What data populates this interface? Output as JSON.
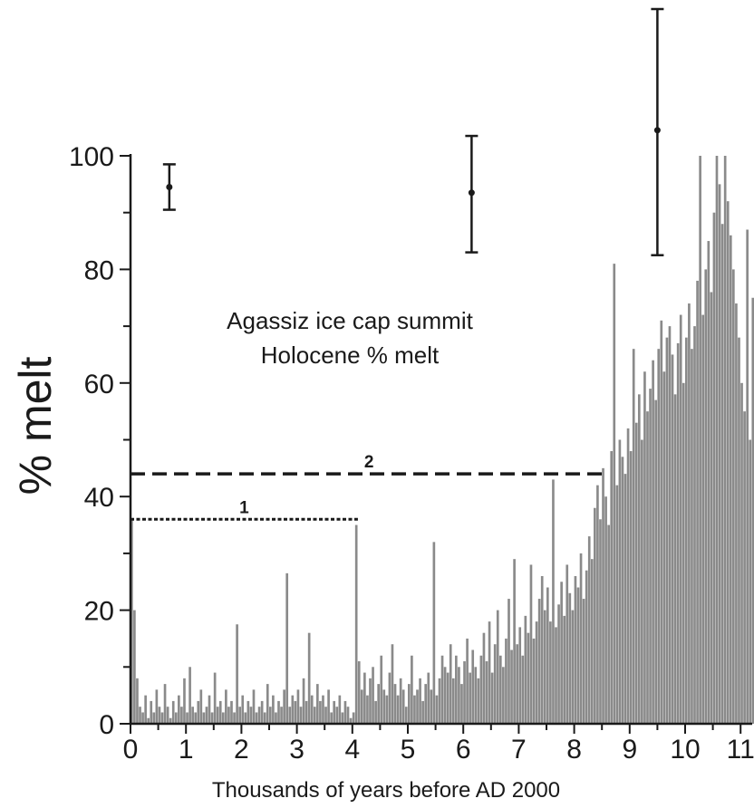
{
  "chart_data": {
    "type": "bar",
    "title_lines": [
      "Agassiz ice cap summit",
      "Holocene % melt"
    ],
    "xlabel": "Thousands of years before AD 2000",
    "ylabel": "% melt",
    "xlim": [
      0,
      11.25
    ],
    "ylim": [
      0,
      100
    ],
    "x_ticks": [
      0,
      1,
      2,
      3,
      4,
      5,
      6,
      7,
      8,
      9,
      10,
      11
    ],
    "y_ticks": [
      0,
      20,
      40,
      60,
      80,
      100
    ],
    "y_minor_ticks": [
      10,
      30,
      50,
      70,
      90
    ],
    "bar_color": "#8a8a8a",
    "reference_lines": [
      {
        "label": "1",
        "y": 36,
        "x_start": 0,
        "x_end": 4.1,
        "style": "dotted"
      },
      {
        "label": "2",
        "y": 44,
        "x_start": 0,
        "x_end": 8.6,
        "style": "dashed"
      }
    ],
    "error_bars": [
      {
        "x": 0.7,
        "y": 94.5,
        "low": 90.5,
        "high": 98.5
      },
      {
        "x": 6.15,
        "y": 93.5,
        "low": 83,
        "high": 103.5
      },
      {
        "x": 9.5,
        "y": 104.5,
        "low": 82.5,
        "high": 127
      }
    ],
    "x": [
      0.0,
      0.05,
      0.1,
      0.15,
      0.2,
      0.25,
      0.3,
      0.35,
      0.4,
      0.45,
      0.5,
      0.55,
      0.6,
      0.65,
      0.7,
      0.75,
      0.8,
      0.85,
      0.9,
      0.95,
      1.0,
      1.05,
      1.1,
      1.15,
      1.2,
      1.25,
      1.3,
      1.35,
      1.4,
      1.45,
      1.5,
      1.55,
      1.6,
      1.65,
      1.7,
      1.75,
      1.8,
      1.85,
      1.9,
      1.95,
      2.0,
      2.05,
      2.1,
      2.15,
      2.2,
      2.25,
      2.3,
      2.35,
      2.4,
      2.45,
      2.5,
      2.55,
      2.6,
      2.65,
      2.7,
      2.75,
      2.8,
      2.85,
      2.9,
      2.95,
      3.0,
      3.05,
      3.1,
      3.15,
      3.2,
      3.25,
      3.3,
      3.35,
      3.4,
      3.45,
      3.5,
      3.55,
      3.6,
      3.65,
      3.7,
      3.75,
      3.8,
      3.85,
      3.9,
      3.95,
      4.0,
      4.05,
      4.1,
      4.15,
      4.2,
      4.25,
      4.3,
      4.35,
      4.4,
      4.45,
      4.5,
      4.55,
      4.6,
      4.65,
      4.7,
      4.75,
      4.8,
      4.85,
      4.9,
      4.95,
      5.0,
      5.05,
      5.1,
      5.15,
      5.2,
      5.25,
      5.3,
      5.35,
      5.4,
      5.45,
      5.5,
      5.55,
      5.6,
      5.65,
      5.7,
      5.75,
      5.8,
      5.85,
      5.9,
      5.95,
      6.0,
      6.05,
      6.1,
      6.15,
      6.2,
      6.25,
      6.3,
      6.35,
      6.4,
      6.45,
      6.5,
      6.55,
      6.6,
      6.65,
      6.7,
      6.75,
      6.8,
      6.85,
      6.9,
      6.95,
      7.0,
      7.05,
      7.1,
      7.15,
      7.2,
      7.25,
      7.3,
      7.35,
      7.4,
      7.45,
      7.5,
      7.55,
      7.6,
      7.65,
      7.7,
      7.75,
      7.8,
      7.85,
      7.9,
      7.95,
      8.0,
      8.05,
      8.1,
      8.15,
      8.2,
      8.25,
      8.3,
      8.35,
      8.4,
      8.45,
      8.5,
      8.55,
      8.6,
      8.65,
      8.7,
      8.75,
      8.8,
      8.85,
      8.9,
      8.95,
      9.0,
      9.05,
      9.1,
      9.15,
      9.2,
      9.25,
      9.3,
      9.35,
      9.4,
      9.45,
      9.5,
      9.55,
      9.6,
      9.65,
      9.7,
      9.75,
      9.8,
      9.85,
      9.9,
      9.95,
      10.0,
      10.05,
      10.1,
      10.15,
      10.2,
      10.25,
      10.3,
      10.35,
      10.4,
      10.45,
      10.5,
      10.55,
      10.6,
      10.65,
      10.7,
      10.75,
      10.8,
      10.85,
      10.9,
      10.95,
      11.0,
      11.05,
      11.1,
      11.15,
      11.2
    ],
    "values": [
      36,
      20,
      8,
      3,
      2,
      5,
      1,
      4,
      2,
      6,
      3,
      2,
      7,
      3,
      1,
      4,
      2,
      5,
      3,
      8,
      2,
      10,
      3,
      2,
      4,
      6,
      2,
      3,
      5,
      2,
      9,
      3,
      4,
      2,
      6,
      3,
      4,
      2,
      17.5,
      3,
      5,
      2,
      4,
      3,
      6,
      2,
      3,
      4,
      2,
      7,
      3,
      5,
      2,
      4,
      3,
      6,
      26.5,
      3,
      5,
      4,
      6,
      3,
      8,
      4,
      16,
      5,
      3,
      7,
      4,
      5,
      3,
      6,
      2,
      4,
      3,
      5,
      2,
      4,
      3,
      1,
      2,
      35,
      11,
      6,
      9,
      5,
      8,
      10,
      4,
      7,
      12,
      6,
      5,
      9,
      14,
      7,
      5,
      8,
      6,
      3,
      7,
      12,
      5,
      6,
      8,
      4,
      7,
      9,
      6,
      32,
      5,
      8,
      12,
      10,
      9,
      14,
      8,
      12,
      10,
      7,
      11,
      15,
      9,
      13,
      10,
      8,
      12,
      16,
      11,
      18,
      9,
      14,
      20,
      12,
      10,
      15,
      22,
      13,
      29,
      14,
      17,
      12,
      19,
      16,
      28,
      15,
      18,
      22,
      26,
      20,
      24,
      18,
      43,
      17,
      21,
      25,
      19,
      28,
      23,
      20,
      26,
      24,
      30,
      22,
      27,
      33,
      29,
      38,
      42,
      36,
      45,
      40,
      35,
      48,
      81,
      42,
      50,
      47,
      44,
      52,
      48,
      66,
      53,
      58,
      50,
      62,
      55,
      59,
      64,
      57,
      66,
      71,
      62,
      68,
      70,
      65,
      58,
      67,
      72,
      60,
      68,
      74,
      66,
      70,
      78,
      100,
      72,
      80,
      85,
      76,
      90,
      100,
      95,
      88,
      100,
      92,
      86,
      80,
      74,
      68,
      60,
      55,
      87,
      50,
      75
    ]
  }
}
